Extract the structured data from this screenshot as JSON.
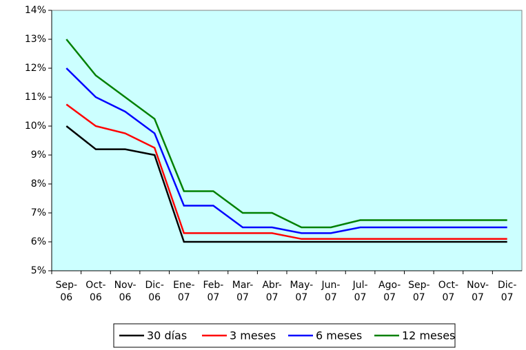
{
  "chart_data": {
    "type": "line",
    "categories": [
      "Sep-06",
      "Oct-06",
      "Nov-06",
      "Dic-06",
      "Ene-07",
      "Feb-07",
      "Mar-07",
      "Abr-07",
      "May-07",
      "Jun-07",
      "Jul-07",
      "Ago-07",
      "Sep-07",
      "Oct-07",
      "Nov-07",
      "Dic-07"
    ],
    "series": [
      {
        "name": "30 días",
        "color": "#000000",
        "values": [
          10,
          9.2,
          9.2,
          9.0,
          6.0,
          6.0,
          6.0,
          6.0,
          6.0,
          6.0,
          6.0,
          6.0,
          6.0,
          6.0,
          6.0,
          6.0
        ]
      },
      {
        "name": "3 meses",
        "color": "#ff0000",
        "values": [
          10.75,
          10.0,
          9.75,
          9.25,
          6.3,
          6.3,
          6.3,
          6.3,
          6.1,
          6.1,
          6.1,
          6.1,
          6.1,
          6.1,
          6.1,
          6.1
        ]
      },
      {
        "name": "6 meses",
        "color": "#0000ff",
        "values": [
          12,
          11,
          10.5,
          9.75,
          7.25,
          7.25,
          6.5,
          6.5,
          6.3,
          6.3,
          6.5,
          6.5,
          6.5,
          6.5,
          6.5,
          6.5
        ]
      },
      {
        "name": "12 meses",
        "color": "#008000",
        "values": [
          13,
          11.75,
          11.0,
          10.25,
          7.75,
          7.75,
          7.0,
          7.0,
          6.5,
          6.5,
          6.75,
          6.75,
          6.75,
          6.75,
          6.75,
          6.75
        ]
      }
    ],
    "ylim": [
      5,
      14
    ],
    "yticks": [
      {
        "value": 5,
        "label": "5%"
      },
      {
        "value": 6,
        "label": "6%"
      },
      {
        "value": 7,
        "label": "7%"
      },
      {
        "value": 8,
        "label": "8%"
      },
      {
        "value": 9,
        "label": "9%"
      },
      {
        "value": 10,
        "label": "10%"
      },
      {
        "value": 11,
        "label": "11%"
      },
      {
        "value": 12,
        "label": "12%"
      },
      {
        "value": 13,
        "label": "13%"
      },
      {
        "value": 14,
        "label": "14%"
      }
    ],
    "plot_background": "#ccffff"
  }
}
